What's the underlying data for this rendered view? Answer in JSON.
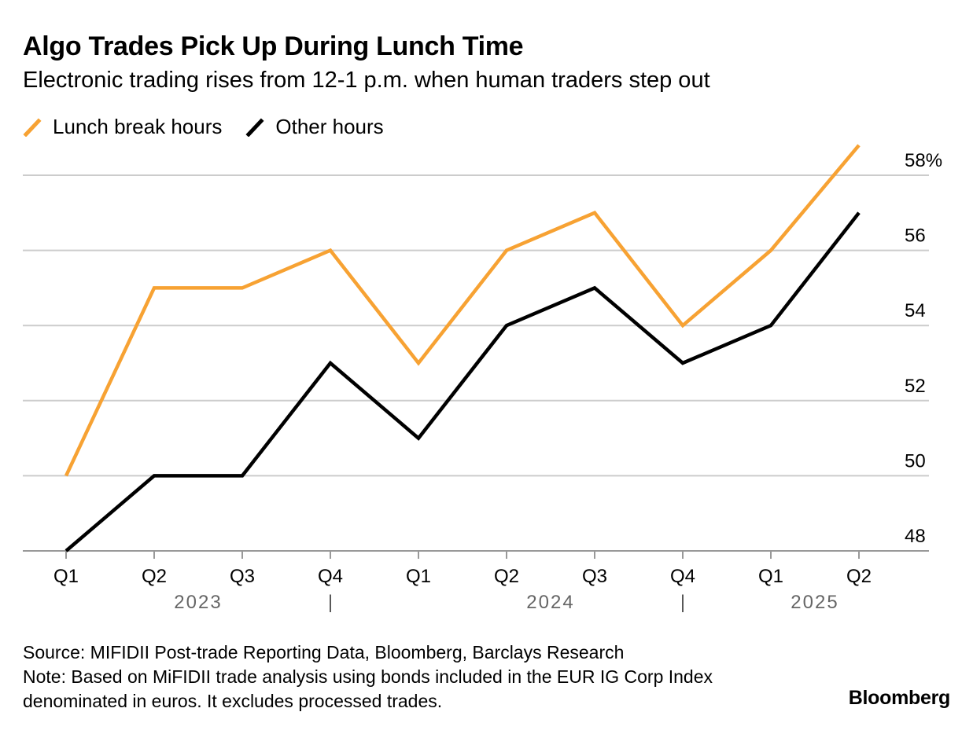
{
  "title": "Algo Trades Pick Up During Lunch Time",
  "subtitle": "Electronic trading rises from 12-1 p.m. when human traders step out",
  "colors": {
    "lunch": "#f7a233",
    "other": "#000000",
    "grid": "#cccccc",
    "year_label": "#666666"
  },
  "chart_data": {
    "type": "line",
    "categories": [
      "Q1",
      "Q2",
      "Q3",
      "Q4",
      "Q1",
      "Q2",
      "Q3",
      "Q4",
      "Q1",
      "Q2"
    ],
    "year_labels": [
      "2023",
      "2024",
      "2025"
    ],
    "year_separator": "|",
    "series": [
      {
        "name": "Lunch break hours",
        "values": [
          50,
          55,
          55,
          56,
          53,
          56,
          57,
          54,
          56,
          58.8
        ]
      },
      {
        "name": "Other hours",
        "values": [
          48,
          50,
          50,
          53,
          51,
          54,
          55,
          53,
          54,
          57
        ]
      }
    ],
    "ylim": [
      48,
      58
    ],
    "yticks": [
      "48",
      "50",
      "52",
      "54",
      "56",
      "58%"
    ],
    "grid": true,
    "legend_position": "top-left"
  },
  "footer": {
    "source": "Source: MIFIDII Post-trade Reporting Data, Bloomberg, Barclays Research",
    "note_line1": "Note: Based on MiFIDII trade analysis using bonds included in the EUR IG Corp Index",
    "note_line2": "denominated in euros. It excludes processed trades."
  },
  "brand": "Bloomberg"
}
